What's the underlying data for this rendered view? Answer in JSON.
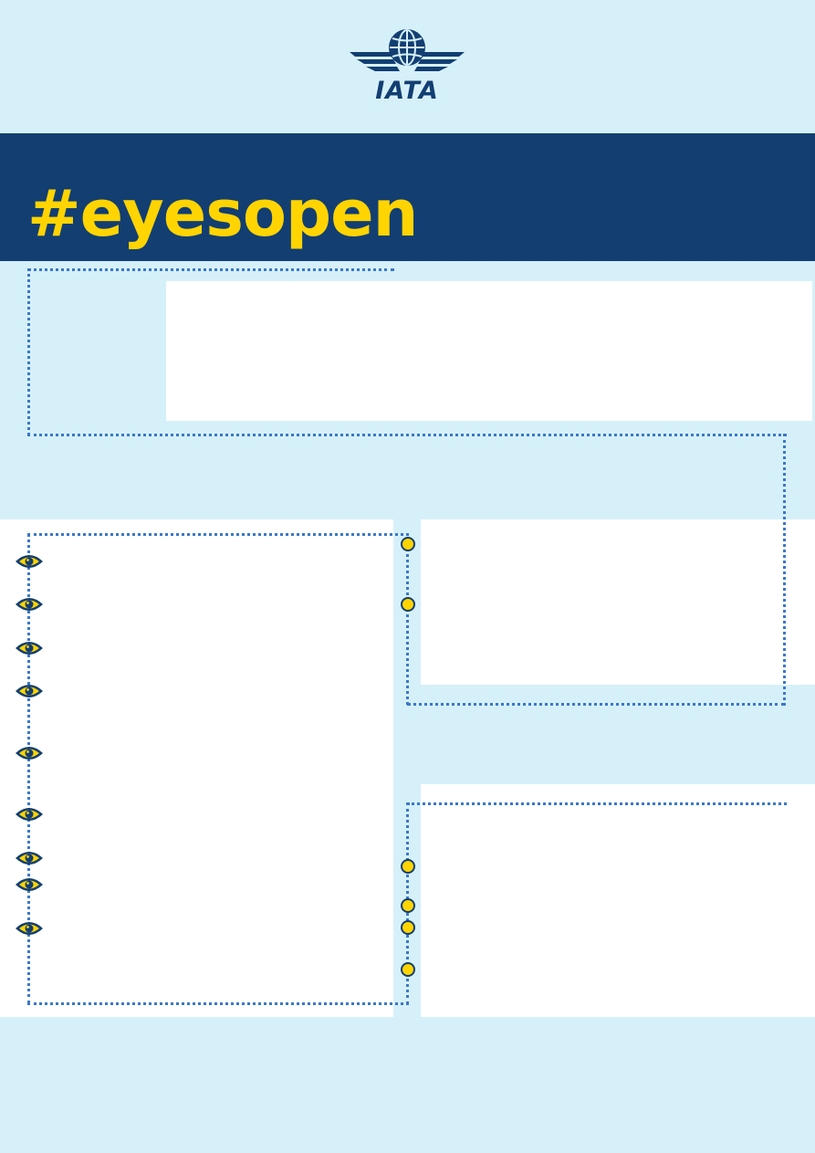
{
  "logo": {
    "name": "globe-wings-logo-icon",
    "text": "IATA"
  },
  "banner": {
    "hashtag_prefix": "#eyes",
    "hashtag_o": "o",
    "hashtag_suffix": "pen"
  },
  "colors": {
    "page_background": "#d6f0fa",
    "navy": "#123e72",
    "accent_yellow": "#ffd400",
    "dotted_line": "#3a78c8",
    "panel": "#ffffff"
  },
  "markers": {
    "left_list_icon": "eye-icon",
    "right_list_icon": "yellow-circle-icon",
    "left_list_count": 9,
    "right_top_count": 2,
    "right_bottom_count": 4
  }
}
